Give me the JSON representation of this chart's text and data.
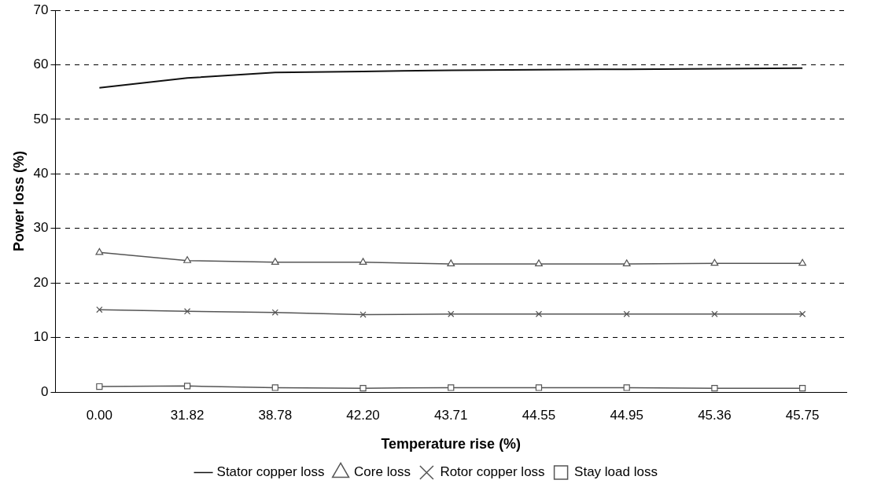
{
  "chart_data": {
    "type": "line",
    "xlabel": "Temperature rise (%)",
    "ylabel": "Power loss (%)",
    "categories": [
      "0.00",
      "31.82",
      "38.78",
      "42.20",
      "43.71",
      "44.55",
      "44.95",
      "45.36",
      "45.75"
    ],
    "series": [
      {
        "name": "Stator copper loss",
        "color": "#111111",
        "marker": "none",
        "values": [
          55.8,
          57.6,
          58.6,
          58.8,
          59,
          59.1,
          59.2,
          59.3,
          59.4
        ]
      },
      {
        "name": "Core loss",
        "color": "#555555",
        "marker": "triangle",
        "values": [
          25.6,
          24.1,
          23.8,
          23.8,
          23.5,
          23.5,
          23.5,
          23.6,
          23.6
        ]
      },
      {
        "name": "Rotor copper loss",
        "color": "#555555",
        "marker": "cross",
        "values": [
          15.1,
          14.8,
          14.6,
          14.2,
          14.3,
          14.3,
          14.3,
          14.3,
          14.3
        ]
      },
      {
        "name": "Stay load loss",
        "color": "#555555",
        "marker": "square",
        "values": [
          1,
          1.1,
          0.8,
          0.7,
          0.8,
          0.8,
          0.8,
          0.7,
          0.7
        ]
      }
    ],
    "ylim": [
      0,
      70
    ],
    "yticks": [
      0,
      10,
      20,
      30,
      40,
      50,
      60,
      70
    ],
    "grid": "y",
    "legend": "bottom",
    "line_style": "solid"
  }
}
